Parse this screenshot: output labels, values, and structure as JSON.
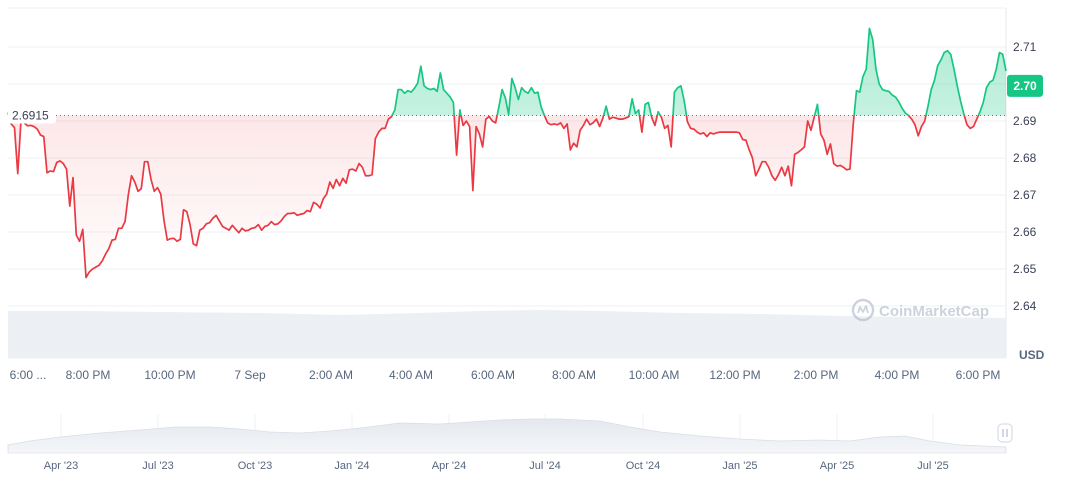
{
  "chart_data": {
    "type": "area",
    "currency": "USD",
    "watermark": "CoinMarketCap",
    "baseline": {
      "label": "2.6915",
      "value": 2.6915
    },
    "current_price": {
      "label": "2.70",
      "value": 2.6995
    },
    "ylim": [
      2.635,
      2.718
    ],
    "y_ticks": [
      {
        "label": "2.71",
        "value": 2.71
      },
      {
        "label": "2.70",
        "value": 2.7
      },
      {
        "label": "2.69",
        "value": 2.69
      },
      {
        "label": "2.68",
        "value": 2.68
      },
      {
        "label": "2.67",
        "value": 2.67
      },
      {
        "label": "2.66",
        "value": 2.66
      },
      {
        "label": "2.65",
        "value": 2.65
      },
      {
        "label": "2.64",
        "value": 2.64
      }
    ],
    "x_ticks": [
      "6:00 ...",
      "8:00 PM",
      "10:00 PM",
      "7 Sep",
      "2:00 AM",
      "4:00 AM",
      "6:00 AM",
      "8:00 AM",
      "10:00 AM",
      "12:00 PM",
      "2:00 PM",
      "4:00 PM",
      "6:00 PM"
    ],
    "navigator_ticks": [
      "Apr '23",
      "Jul '23",
      "Oct '23",
      "Jan '24",
      "Apr '24",
      "Jul '24",
      "Oct '24",
      "Jan '25",
      "Apr '25",
      "Jul '25"
    ],
    "colors": {
      "up": "#16c784",
      "down": "#ea3943",
      "baseline": "#ea3943",
      "grid": "#eff2f5",
      "volume": "#eff2f5"
    },
    "series": [
      {
        "values": [
          2.6923,
          2.6892,
          2.6882,
          2.6758,
          2.6902,
          2.6895,
          2.6887,
          2.6888,
          2.6885,
          2.6878,
          2.6862,
          2.6858,
          2.676,
          2.6765,
          2.6763,
          2.6788,
          2.6792,
          2.6785,
          2.677,
          2.667,
          2.6747,
          2.6592,
          2.6575,
          2.6607,
          2.6477,
          2.6492,
          2.65,
          2.6505,
          2.651,
          2.6522,
          2.654,
          2.6555,
          2.6578,
          2.658,
          2.661,
          2.661,
          2.6628,
          2.67,
          2.6752,
          2.6735,
          2.671,
          2.6717,
          2.679,
          2.679,
          2.6742,
          2.671,
          2.672,
          2.6702,
          2.663,
          2.6578,
          2.6582,
          2.6583,
          2.6575,
          2.658,
          2.666,
          2.6655,
          2.662,
          2.6568,
          2.6563,
          2.6605,
          2.661,
          2.6622,
          2.6625,
          2.6637,
          2.6645,
          2.663,
          2.6615,
          2.661,
          2.6605,
          2.6618,
          2.6608,
          2.6598,
          2.661,
          2.6603,
          2.6605,
          2.661,
          2.6612,
          2.662,
          2.6605,
          2.6615,
          2.6618,
          2.6628,
          2.662,
          2.6622,
          2.663,
          2.6642,
          2.665,
          2.665,
          2.6652,
          2.6645,
          2.6648,
          2.665,
          2.6658,
          2.6655,
          2.668,
          2.6675,
          2.6665,
          2.669,
          2.6702,
          2.6735,
          2.6718,
          2.6742,
          2.6725,
          2.6745,
          2.6732,
          2.6768,
          2.677,
          2.6765,
          2.6785,
          2.6775,
          2.6752,
          2.6752,
          2.6755,
          2.6852,
          2.687,
          2.688,
          2.688,
          2.6905,
          2.6912,
          2.693,
          2.6985,
          2.6985,
          2.6975,
          2.6982,
          2.6978,
          2.6988,
          2.7002,
          2.7048,
          2.6995,
          2.6988,
          2.6985,
          2.6988,
          2.698,
          2.703,
          2.6985,
          2.6975,
          2.6965,
          2.695,
          2.6808,
          2.693,
          2.6888,
          2.69,
          2.6885,
          2.6712,
          2.6885,
          2.6865,
          2.683,
          2.6905,
          2.6912,
          2.69,
          2.6895,
          2.6938,
          2.6985,
          2.6962,
          2.6918,
          2.7015,
          2.699,
          2.6958,
          2.699,
          2.698,
          2.6975,
          2.699,
          2.6975,
          2.6978,
          2.6938,
          2.6915,
          2.6895,
          2.689,
          2.6892,
          2.689,
          2.6895,
          2.688,
          2.6892,
          2.6822,
          2.684,
          2.683,
          2.6875,
          2.6888,
          2.6905,
          2.689,
          2.6895,
          2.6905,
          2.6885,
          2.6908,
          2.694,
          2.6905,
          2.691,
          2.6908,
          2.6905,
          2.6905,
          2.6908,
          2.6912,
          2.696,
          2.692,
          2.693,
          2.687,
          2.6945,
          2.695,
          2.691,
          2.6888,
          2.6925,
          2.691,
          2.688,
          2.6888,
          2.683,
          2.6978,
          2.699,
          2.6995,
          2.6955,
          2.6898,
          2.688,
          2.6878,
          2.687,
          2.6865,
          2.6868,
          2.6858,
          2.6868,
          2.6865,
          2.6868,
          2.687,
          2.687,
          2.687,
          2.687,
          2.687,
          2.687,
          2.6868,
          2.685,
          2.6848,
          2.6822,
          2.68,
          2.6752,
          2.677,
          2.679,
          2.679,
          2.6775,
          2.6752,
          2.674,
          2.6755,
          2.6775,
          2.6752,
          2.6778,
          2.6725,
          2.681,
          2.6815,
          2.6822,
          2.683,
          2.69,
          2.6875,
          2.691,
          2.6945,
          2.6865,
          2.6848,
          2.681,
          2.6838,
          2.6785,
          2.6778,
          2.678,
          2.6775,
          2.6768,
          2.677,
          2.689,
          2.6982,
          2.6978,
          2.702,
          2.704,
          2.715,
          2.712,
          2.704,
          2.7,
          2.6985,
          2.6982,
          2.698,
          2.697,
          2.6965,
          2.6952,
          2.6935,
          2.6922,
          2.6915,
          2.6905,
          2.689,
          2.686,
          2.6885,
          2.69,
          2.694,
          2.6985,
          2.701,
          2.705,
          2.7065,
          2.7085,
          2.709,
          2.708,
          2.704,
          2.6995,
          2.6955,
          2.692,
          2.689,
          2.688,
          2.6885,
          2.6905,
          2.6925,
          2.695,
          2.699,
          2.7005,
          2.701,
          2.704,
          2.7085,
          2.708,
          2.7035
        ]
      }
    ]
  }
}
